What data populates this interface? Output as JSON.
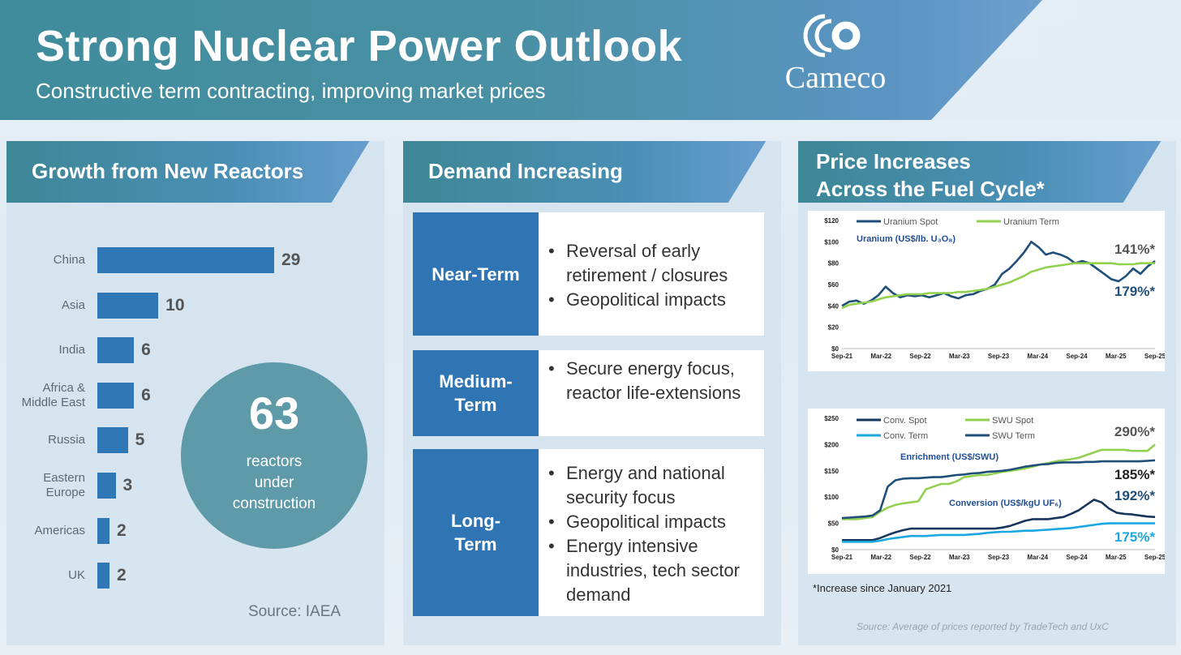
{
  "header": {
    "title": "Strong Nuclear Power Outlook",
    "subtitle": "Constructive term contracting, improving market prices",
    "logo_text": "Cameco"
  },
  "growth": {
    "heading": "Growth from New Reactors",
    "circle_value": "63",
    "circle_label_1": "reactors",
    "circle_label_2": "under",
    "circle_label_3": "construction",
    "source": "Source: IAEA"
  },
  "demand": {
    "heading": "Demand Increasing",
    "rows": [
      {
        "label_1": "Near-Term",
        "label_2": "",
        "items": [
          "Reversal of early retirement / closures",
          "Geopolitical impacts"
        ]
      },
      {
        "label_1": "Medium-",
        "label_2": "Term",
        "items": [
          "Secure energy focus, reactor life-extensions"
        ]
      },
      {
        "label_1": "Long-",
        "label_2": "Term",
        "items": [
          "Energy and national security focus",
          "Geopolitical impacts",
          "Energy intensive industries, tech sector demand"
        ]
      }
    ]
  },
  "prices": {
    "heading_1": "Price Increases",
    "heading_2": "Across the Fuel Cycle*",
    "footnote": "*Increase since January 2021",
    "source": "Source: Average of prices reported by TradeTech and UxC"
  },
  "colors": {
    "navy": "#1f4e79",
    "green": "#92d050",
    "cyan": "#1aa7e0",
    "dark": "#17365d",
    "bar": "#2f77b5"
  },
  "chart_data": [
    {
      "type": "bar",
      "orientation": "horizontal",
      "title": "Growth from New Reactors",
      "categories": [
        "China",
        "Asia",
        "India",
        "Africa & Middle East",
        "Russia",
        "Eastern Europe",
        "Americas",
        "UK"
      ],
      "category_lines": [
        [
          "China"
        ],
        [
          "Asia"
        ],
        [
          "India"
        ],
        [
          "Africa &",
          "Middle East"
        ],
        [
          "Russia"
        ],
        [
          "Eastern",
          "Europe"
        ],
        [
          "Americas"
        ],
        [
          "UK"
        ]
      ],
      "values": [
        29,
        10,
        6,
        6,
        5,
        3,
        2,
        2
      ]
    },
    {
      "type": "line",
      "title": "Uranium (US$/lb. U₃O₈)",
      "x_ticks": [
        "Sep-21",
        "Mar-22",
        "Sep-22",
        "Mar-23",
        "Sep-23",
        "Mar-24",
        "Sep-24",
        "Mar-25",
        "Sep-25"
      ],
      "y_ticks": [
        "$0",
        "$20",
        "$40",
        "$60",
        "$80",
        "$100",
        "$120"
      ],
      "ylim": [
        0,
        120
      ],
      "series": [
        {
          "name": "Uranium Spot",
          "color": "#1f4e79",
          "values": [
            40,
            44,
            45,
            42,
            45,
            50,
            58,
            52,
            48,
            50,
            49,
            50,
            48,
            50,
            52,
            49,
            47,
            50,
            51,
            54,
            56,
            60,
            70,
            75,
            82,
            90,
            100,
            95,
            88,
            90,
            88,
            85,
            80,
            82,
            80,
            75,
            70,
            65,
            63,
            68,
            75,
            70,
            77,
            82
          ]
        },
        {
          "name": "Uranium Term",
          "color": "#92d050",
          "values": [
            38,
            41,
            42,
            43,
            44,
            46,
            48,
            49,
            50,
            51,
            51,
            51,
            52,
            52,
            52,
            52,
            53,
            53,
            54,
            55,
            56,
            58,
            60,
            62,
            65,
            68,
            72,
            74,
            76,
            77,
            78,
            79,
            80,
            80,
            80,
            80,
            80,
            80,
            79,
            79,
            79,
            80,
            80,
            80
          ]
        }
      ],
      "annotations": [
        "141%*",
        "179%*"
      ]
    },
    {
      "type": "line",
      "title": "Enrichment (US$/SWU)",
      "subtitle": "Conversion (US$/kgU UF₆)",
      "x_ticks": [
        "Sep-21",
        "Mar-22",
        "Sep-22",
        "Mar-23",
        "Sep-23",
        "Mar-24",
        "Sep-24",
        "Mar-25",
        "Sep-25"
      ],
      "y_ticks": [
        "$0",
        "$50",
        "$100",
        "$150",
        "$200",
        "$250"
      ],
      "ylim": [
        0,
        250
      ],
      "series": [
        {
          "name": "Conv. Spot",
          "color": "#17365d",
          "values": [
            18,
            18,
            18,
            18,
            18,
            22,
            28,
            33,
            37,
            40,
            40,
            40,
            40,
            40,
            40,
            40,
            40,
            40,
            40,
            40,
            40,
            42,
            45,
            50,
            55,
            58,
            58,
            58,
            60,
            62,
            68,
            75,
            85,
            95,
            90,
            78,
            70,
            68,
            67,
            65,
            63,
            62
          ]
        },
        {
          "name": "Conv. Term",
          "color": "#1aa7e0",
          "values": [
            15,
            15,
            15,
            15,
            15,
            17,
            20,
            22,
            24,
            26,
            26,
            26,
            27,
            28,
            28,
            28,
            28,
            29,
            30,
            32,
            33,
            34,
            34,
            35,
            36,
            36,
            37,
            38,
            39,
            40,
            41,
            43,
            45,
            47,
            49,
            50,
            50,
            50,
            50,
            50,
            50,
            50
          ]
        },
        {
          "name": "SWU Spot",
          "color": "#92d050",
          "values": [
            58,
            58,
            58,
            60,
            62,
            72,
            80,
            85,
            88,
            90,
            92,
            115,
            120,
            125,
            125,
            130,
            138,
            140,
            142,
            142,
            145,
            148,
            150,
            152,
            155,
            158,
            162,
            165,
            168,
            170,
            172,
            175,
            180,
            185,
            190,
            190,
            190,
            190,
            188,
            188,
            188,
            200
          ]
        },
        {
          "name": "SWU Term",
          "color": "#1f4e79",
          "values": [
            60,
            61,
            62,
            63,
            65,
            75,
            120,
            132,
            135,
            136,
            136,
            137,
            138,
            138,
            140,
            142,
            143,
            145,
            146,
            148,
            149,
            150,
            152,
            155,
            158,
            160,
            162,
            163,
            165,
            166,
            166,
            166,
            167,
            167,
            168,
            168,
            168,
            168,
            168,
            168,
            169,
            170
          ]
        }
      ],
      "annotations": [
        "290%*",
        "185%*",
        "192%*",
        "175%*"
      ]
    }
  ]
}
